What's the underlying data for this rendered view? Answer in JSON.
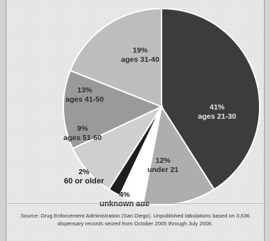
{
  "chart_data": {
    "type": "pie",
    "title": "",
    "slices": [
      {
        "pct_label": "41%",
        "label": "ages 21-30",
        "value": 41,
        "color": "#3c3c3c",
        "text_color": "#e6e6e6"
      },
      {
        "pct_label": "12%",
        "label": "under 21",
        "value": 12,
        "color": "#aeaeae",
        "text_color": "#2e2e2e"
      },
      {
        "pct_label": "4%",
        "label": "unknown age",
        "value": 4,
        "color": "#ffffff",
        "text_color": "#1e1e1e"
      },
      {
        "pct_label": "2%",
        "label": "60 or older",
        "value": 2,
        "color": "#1e1e1e",
        "text_color": "#1e1e1e"
      },
      {
        "pct_label": "9%",
        "label": "ages 51-60",
        "value": 9,
        "color": "#cfcfcf",
        "text_color": "#2e2e2e"
      },
      {
        "pct_label": "13%",
        "label": "ages 41-50",
        "value": 13,
        "color": "#9a9a9a",
        "text_color": "#2e2e2e"
      },
      {
        "pct_label": "19%",
        "label": "ages 31-40",
        "value": 19,
        "color": "#bdbdbd",
        "text_color": "#2e2e2e"
      }
    ]
  },
  "source": {
    "line1": "Source: Drug Enforcement Administration (San Diego). Unpublished tabulations based on 3,636",
    "line2": "dispensary records seized from October 2005 through July 2006."
  }
}
